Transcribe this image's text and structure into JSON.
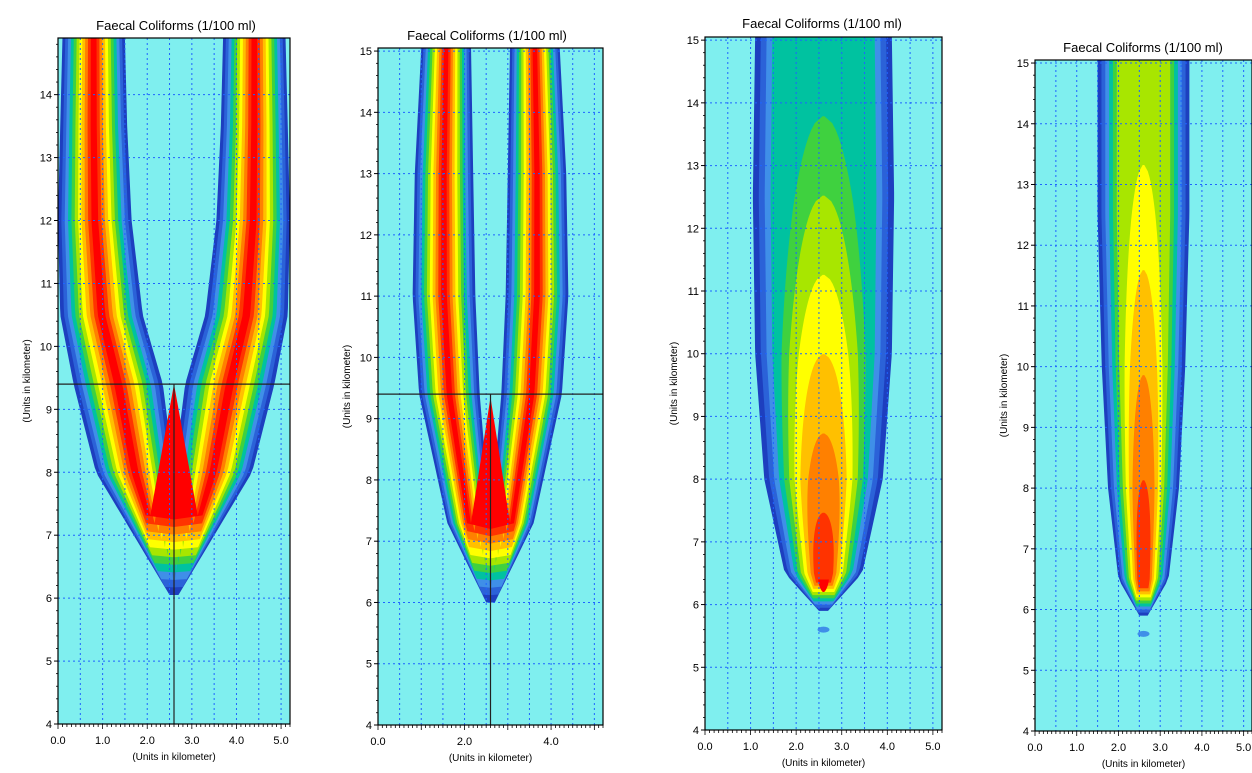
{
  "colors": {
    "background": "#7fefef",
    "grid": "#1e64ff",
    "axis": "#000000",
    "levels": [
      "#7fefef",
      "#1d3fbf",
      "#2b62d8",
      "#3f8fe8",
      "#00c2a0",
      "#3fd13f",
      "#a8e600",
      "#ffff00",
      "#ffc000",
      "#ff8000",
      "#ff3300",
      "#ff0000"
    ]
  },
  "chart_data": [
    {
      "type": "heatmap",
      "panel": "A",
      "title": "Faecal Coliforms (1/100 ml)",
      "xlabel": "(Units in kilometer)",
      "ylabel": "(Units in kilometer)",
      "xlim": [
        0,
        5.2
      ],
      "ylim": [
        4,
        14.9
      ],
      "xticks": [
        0.0,
        1.0,
        2.0,
        3.0,
        4.0,
        5.0
      ],
      "xtick_labels": [
        "0.0",
        "1.0",
        "2.0",
        "3.0",
        "4.0",
        "5.0"
      ],
      "yticks": [
        4,
        5,
        6,
        7,
        8,
        9,
        10,
        11,
        12,
        13,
        14
      ],
      "grid": true,
      "crosshair": {
        "x": 2.6,
        "y": 9.4
      },
      "plume": {
        "shape": "twin",
        "x_center": 2.6,
        "y_start": 6.05,
        "max_level": 11
      },
      "bands": [
        {
          "y": 6.05,
          "inner": 0,
          "outer": 0.1
        },
        {
          "y": 8.0,
          "inner": 0,
          "outer": 1.75
        },
        {
          "y": 9.4,
          "inner": 0.25,
          "outer": 2.25
        },
        {
          "y": 10.5,
          "inner": 0.7,
          "outer": 2.55
        },
        {
          "y": 12.0,
          "inner": 0.95,
          "outer": 2.6
        },
        {
          "y": 13.5,
          "inner": 1.05,
          "outer": 2.55
        },
        {
          "y": 14.9,
          "inner": 1.1,
          "outer": 2.5
        }
      ]
    },
    {
      "type": "heatmap",
      "panel": "B",
      "title": "Faecal Coliforms (1/100 ml)",
      "xlabel": "(Units in kilometer)",
      "ylabel": "(Units in kilometer)",
      "xlim": [
        0,
        5.2
      ],
      "ylim": [
        4,
        15.05
      ],
      "xticks": [
        0.0,
        2.0,
        4.0
      ],
      "xtick_labels": [
        "0.0",
        "2.0",
        "4.0"
      ],
      "yticks": [
        4,
        5,
        6,
        7,
        8,
        9,
        10,
        11,
        12,
        13,
        14,
        15
      ],
      "grid": true,
      "crosshair": {
        "x": 2.6,
        "y": 9.4
      },
      "plume": {
        "shape": "twin",
        "x_center": 2.6,
        "y_start": 6.0,
        "max_level": 11
      },
      "bands": [
        {
          "y": 6.0,
          "inner": 0,
          "outer": 0.1
        },
        {
          "y": 7.3,
          "inner": 0,
          "outer": 1.0
        },
        {
          "y": 9.4,
          "inner": 0.25,
          "outer": 1.65
        },
        {
          "y": 11.0,
          "inner": 0.35,
          "outer": 1.8
        },
        {
          "y": 13.0,
          "inner": 0.4,
          "outer": 1.75
        },
        {
          "y": 15.05,
          "inner": 0.45,
          "outer": 1.6
        }
      ]
    },
    {
      "type": "heatmap",
      "panel": "C",
      "title": "Faecal Coliforms (1/100 ml)",
      "xlabel": "(Units in kilometer)",
      "ylabel": "(Units in kilometer)",
      "xlim": [
        0,
        5.2
      ],
      "ylim": [
        4,
        15.05
      ],
      "xticks": [
        0.0,
        1.0,
        2.0,
        3.0,
        4.0,
        5.0
      ],
      "xtick_labels": [
        "0.0",
        "1.0",
        "2.0",
        "3.0",
        "4.0",
        "5.0"
      ],
      "yticks": [
        4,
        5,
        6,
        7,
        8,
        9,
        10,
        11,
        12,
        13,
        14,
        15
      ],
      "grid": true,
      "plume": {
        "shape": "single",
        "x_center": 2.6,
        "y_start": 5.9,
        "peak_y": 6.2,
        "top_level": 4,
        "max_level": 11
      },
      "bands": [
        {
          "y": 5.9,
          "outer": 0.1
        },
        {
          "y": 6.5,
          "outer": 0.85
        },
        {
          "y": 8.0,
          "outer": 1.3
        },
        {
          "y": 10.0,
          "outer": 1.5
        },
        {
          "y": 12.5,
          "outer": 1.55
        },
        {
          "y": 15.05,
          "outer": 1.5
        }
      ],
      "blip": {
        "x": 2.6,
        "y": 5.6
      }
    },
    {
      "type": "heatmap",
      "panel": "D",
      "title": "Faecal Coliforms (1/100 ml)",
      "xlabel": "(Units in kilometer)",
      "ylabel": "(Units in kilometer)",
      "xlim": [
        0,
        5.2
      ],
      "ylim": [
        4,
        15.05
      ],
      "xticks": [
        0.0,
        1.0,
        2.0,
        3.0,
        4.0,
        5.0
      ],
      "xtick_labels": [
        "0.0",
        "1.0",
        "2.0",
        "3.0",
        "4.0",
        "5.0"
      ],
      "yticks": [
        4,
        5,
        6,
        7,
        8,
        9,
        10,
        11,
        12,
        13,
        14,
        15
      ],
      "grid": true,
      "plume": {
        "shape": "single",
        "x_center": 2.6,
        "y_start": 5.9,
        "peak_y": 6.4,
        "top_level": 6,
        "max_level": 11
      },
      "bands": [
        {
          "y": 5.9,
          "outer": 0.1
        },
        {
          "y": 6.5,
          "outer": 0.6
        },
        {
          "y": 8.0,
          "outer": 0.85
        },
        {
          "y": 10.0,
          "outer": 1.0
        },
        {
          "y": 12.5,
          "outer": 1.1
        },
        {
          "y": 15.05,
          "outer": 1.1
        }
      ],
      "blip": {
        "x": 2.6,
        "y": 5.6
      }
    }
  ]
}
